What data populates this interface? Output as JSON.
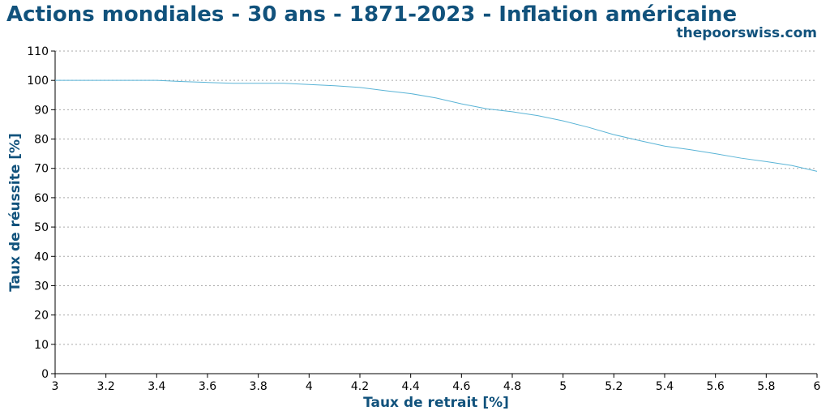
{
  "chart_data": {
    "type": "line",
    "title": "Actions mondiales - 30 ans - 1871-2023 - Inflation américaine",
    "subtitle": "thepoorswiss.com",
    "x_label": "Taux de retrait [%]",
    "y_label": "Taux de réussite [%]",
    "x": [
      3.0,
      3.1,
      3.2,
      3.3,
      3.4,
      3.5,
      3.6,
      3.7,
      3.8,
      3.9,
      4.0,
      4.1,
      4.2,
      4.3,
      4.4,
      4.5,
      4.6,
      4.7,
      4.8,
      4.9,
      5.0,
      5.1,
      5.2,
      5.3,
      5.4,
      5.5,
      5.6,
      5.7,
      5.8,
      5.9,
      6.0
    ],
    "series": [
      {
        "color": "#5ab4d6",
        "values": [
          100,
          100,
          100,
          100,
          100,
          99.6,
          99.3,
          99,
          99,
          99,
          98.6,
          98.2,
          97.6,
          96.5,
          95.5,
          94,
          92,
          90.3,
          89.3,
          88,
          86.2,
          84,
          81.5,
          79.5,
          77.6,
          76.4,
          75,
          73.5,
          72.3,
          71,
          69
        ]
      }
    ],
    "xlim": [
      3,
      6
    ],
    "xticks": [
      3,
      3.2,
      3.4,
      3.6,
      3.8,
      4,
      4.2,
      4.4,
      4.6,
      4.8,
      5,
      5.2,
      5.4,
      5.6,
      5.8,
      6
    ],
    "ylim": [
      0,
      110
    ],
    "yticks": [
      0,
      10,
      20,
      30,
      40,
      50,
      60,
      70,
      80,
      90,
      100,
      110
    ],
    "grid": true
  }
}
